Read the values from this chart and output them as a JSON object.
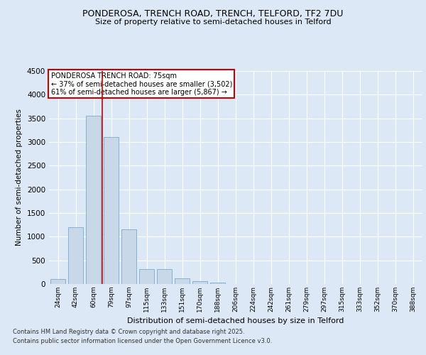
{
  "title_line1": "PONDEROSA, TRENCH ROAD, TRENCH, TELFORD, TF2 7DU",
  "title_line2": "Size of property relative to semi-detached houses in Telford",
  "xlabel": "Distribution of semi-detached houses by size in Telford",
  "ylabel": "Number of semi-detached properties",
  "categories": [
    "24sqm",
    "42sqm",
    "60sqm",
    "79sqm",
    "97sqm",
    "115sqm",
    "133sqm",
    "151sqm",
    "170sqm",
    "188sqm",
    "206sqm",
    "224sqm",
    "242sqm",
    "261sqm",
    "279sqm",
    "297sqm",
    "315sqm",
    "333sqm",
    "352sqm",
    "370sqm",
    "388sqm"
  ],
  "values": [
    100,
    1200,
    3550,
    3100,
    1150,
    310,
    310,
    115,
    65,
    35,
    0,
    0,
    0,
    0,
    0,
    0,
    0,
    0,
    0,
    0,
    0
  ],
  "bar_color": "#c8d8e8",
  "bar_edge_color": "#7aaac8",
  "property_line_index": 2,
  "annotation_title": "PONDEROSA TRENCH ROAD: 75sqm",
  "annotation_line1": "← 37% of semi-detached houses are smaller (3,502)",
  "annotation_line2": "61% of semi-detached houses are larger (5,867) →",
  "annotation_box_color": "#ffffff",
  "annotation_box_edge_color": "#cc0000",
  "property_line_color": "#cc0000",
  "ylim": [
    0,
    4500
  ],
  "yticks": [
    0,
    500,
    1000,
    1500,
    2000,
    2500,
    3000,
    3500,
    4000,
    4500
  ],
  "bg_color": "#dce8f5",
  "plot_bg_color": "#dce8f5",
  "grid_color": "#ffffff",
  "footnote_line1": "Contains HM Land Registry data © Crown copyright and database right 2025.",
  "footnote_line2": "Contains public sector information licensed under the Open Government Licence v3.0."
}
